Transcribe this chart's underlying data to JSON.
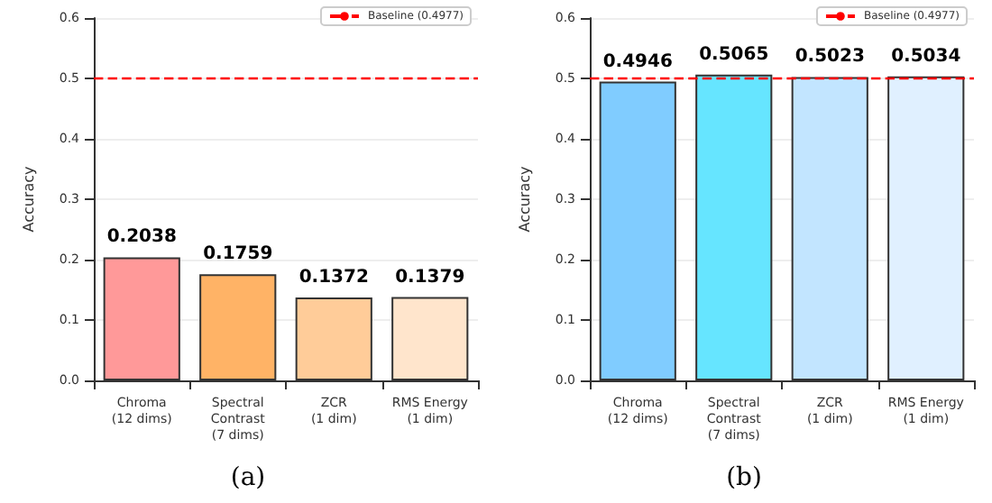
{
  "chart_data": [
    {
      "type": "bar",
      "ylabel": "Accuracy",
      "categories": [
        "Chroma\n(12 dims)",
        "Spectral\nContrast\n(7 dims)",
        "ZCR\n(1 dim)",
        "RMS Energy\n(1 dim)"
      ],
      "values": [
        0.2038,
        0.1759,
        0.1372,
        0.1379
      ],
      "colors": [
        "#ff9999",
        "#ffb366",
        "#ffcc99",
        "#ffe5cc"
      ],
      "ylim": [
        0,
        0.6
      ],
      "yticks": [
        {
          "value": 0,
          "label": "0.0"
        },
        0.1,
        0.2,
        0.3,
        0.4,
        0.5,
        0.6
      ],
      "grid": "y",
      "legend": "top right",
      "data_labels": true,
      "ref_lines": [
        {
          "axis": "y",
          "value": 0.4977,
          "label": "Baseline (0.4977)",
          "color": "#ff0000",
          "line_style": "dashed"
        }
      ],
      "annotations": [
        "(a)"
      ]
    },
    {
      "type": "bar",
      "ylabel": "Accuracy",
      "categories": [
        "Chroma\n(12 dims)",
        "Spectral\nContrast\n(7 dims)",
        "ZCR\n(1 dim)",
        "RMS Energy\n(1 dim)"
      ],
      "values": [
        0.4946,
        0.5065,
        0.5023,
        0.5034
      ],
      "colors": [
        "#80ccff",
        "#66e5ff",
        "#c2e5ff",
        "#e0f0ff"
      ],
      "ylim": [
        0,
        0.6
      ],
      "yticks": [
        {
          "value": 0,
          "label": "0.0"
        },
        0.1,
        0.2,
        0.3,
        0.4,
        0.5,
        0.6
      ],
      "grid": "y",
      "legend": "top right",
      "data_labels": true,
      "ref_lines": [
        {
          "axis": "y",
          "value": 0.4977,
          "label": "Baseline (0.4977)",
          "color": "#ff0000",
          "line_style": "dashed"
        }
      ],
      "annotations": [
        "(b)"
      ]
    }
  ]
}
